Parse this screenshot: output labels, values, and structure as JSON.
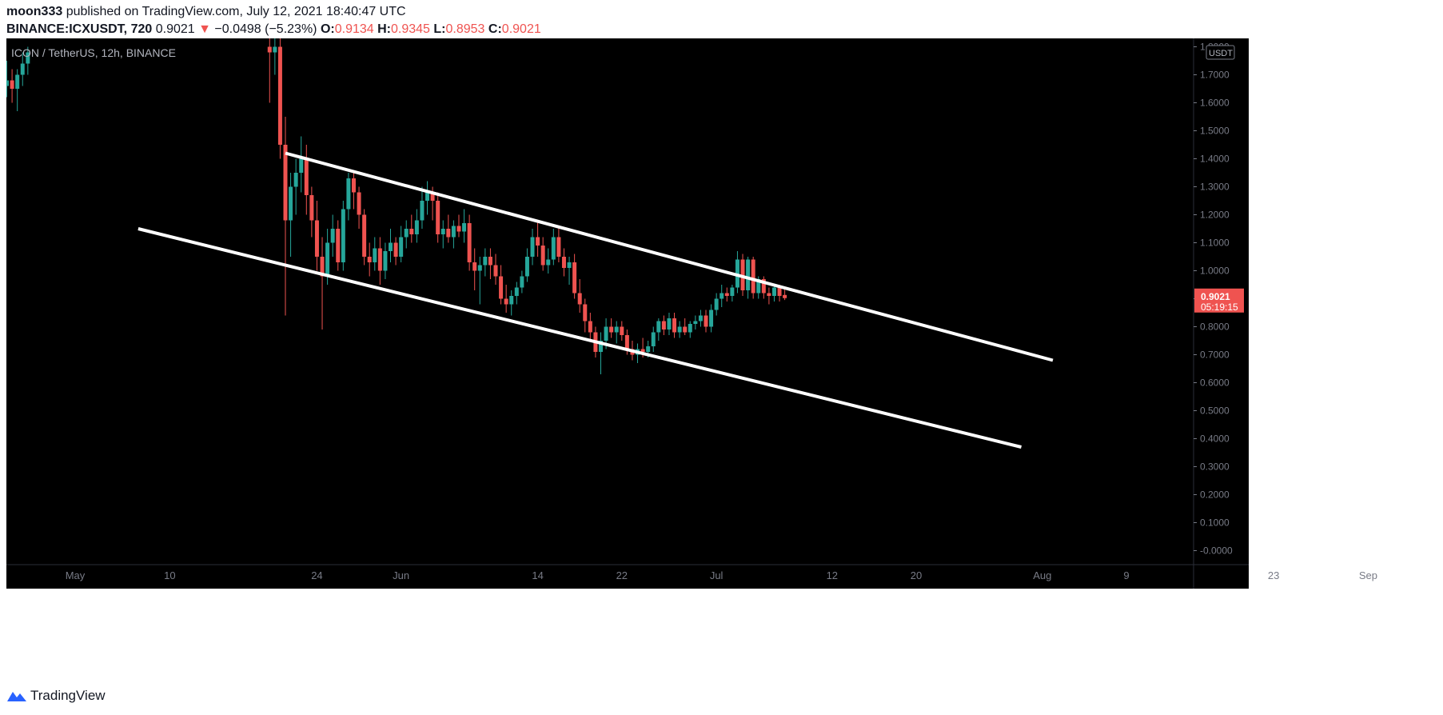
{
  "header": {
    "author": "moon333",
    "published_text": "published on TradingView.com, July 12, 2021 18:40:47 UTC",
    "symbol": "BINANCE:ICXUSDT, 720",
    "price": "0.9021",
    "change": "−0.0498 (−5.23%)",
    "open_label": "O:",
    "open": "0.9134",
    "high_label": "H:",
    "high": "0.9345",
    "low_label": "L:",
    "low": "0.8953",
    "close_label": "C:",
    "close": "0.9021"
  },
  "legend": "ICON / TetherUS, 12h, BINANCE",
  "currency_badge": "USDT",
  "last_price_badge": {
    "price": "0.9021",
    "countdown": "05:19:15"
  },
  "brand": "TradingView",
  "colors": {
    "up": "#26a69a",
    "down": "#ef5350",
    "background": "#000000",
    "axis_text": "#787b86",
    "trendline": "#ffffff"
  },
  "chart_data": {
    "type": "candlestick",
    "title": "ICON / TetherUS, 12h, BINANCE",
    "ylim": [
      -0.05,
      1.83
    ],
    "y_ticks": [
      "1.8000",
      "1.7000",
      "1.6000",
      "1.5000",
      "1.4000",
      "1.3000",
      "1.2000",
      "1.1000",
      "1.0000",
      "0.9000",
      "0.8000",
      "0.7000",
      "0.6000",
      "0.5000",
      "0.4000",
      "0.3000",
      "0.2000",
      "0.1000",
      "-0.0000"
    ],
    "x_ticks": [
      {
        "label": "May",
        "date": "2021-05-01"
      },
      {
        "label": "10",
        "date": "2021-05-10"
      },
      {
        "label": "24",
        "date": "2021-05-24"
      },
      {
        "label": "Jun",
        "date": "2021-06-01"
      },
      {
        "label": "14",
        "date": "2021-06-14"
      },
      {
        "label": "22",
        "date": "2021-06-22"
      },
      {
        "label": "Jul",
        "date": "2021-07-01"
      },
      {
        "label": "12",
        "date": "2021-07-12"
      },
      {
        "label": "20",
        "date": "2021-07-20"
      },
      {
        "label": "Aug",
        "date": "2021-08-01"
      },
      {
        "label": "9",
        "date": "2021-08-09"
      },
      {
        "label": "23",
        "date": "2021-08-23"
      },
      {
        "label": "Sep",
        "date": "2021-09-01"
      }
    ],
    "candles": [
      [
        "2021-04-24 00:00",
        1.7,
        1.74,
        1.5,
        1.66
      ],
      [
        "2021-04-24 12:00",
        1.66,
        1.75,
        1.62,
        1.68
      ],
      [
        "2021-04-25 00:00",
        1.68,
        1.72,
        1.6,
        1.65
      ],
      [
        "2021-04-25 12:00",
        1.65,
        1.72,
        1.57,
        1.7
      ],
      [
        "2021-04-26 00:00",
        1.7,
        1.78,
        1.66,
        1.74
      ],
      [
        "2021-04-26 12:00",
        1.74,
        1.8,
        1.7,
        1.78
      ],
      [
        "2021-05-19 12:00",
        1.8,
        1.83,
        1.6,
        1.78
      ],
      [
        "2021-05-20 00:00",
        1.78,
        1.83,
        1.7,
        1.8
      ],
      [
        "2021-05-20 12:00",
        1.8,
        1.83,
        1.4,
        1.45
      ],
      [
        "2021-05-21 00:00",
        1.45,
        1.55,
        0.84,
        1.18
      ],
      [
        "2021-05-21 12:00",
        1.18,
        1.35,
        1.05,
        1.3
      ],
      [
        "2021-05-22 00:00",
        1.3,
        1.4,
        1.2,
        1.35
      ],
      [
        "2021-05-22 12:00",
        1.35,
        1.48,
        1.28,
        1.4
      ],
      [
        "2021-05-23 00:00",
        1.4,
        1.45,
        1.2,
        1.27
      ],
      [
        "2021-05-23 12:00",
        1.27,
        1.3,
        1.12,
        1.18
      ],
      [
        "2021-05-24 00:00",
        1.18,
        1.25,
        1.0,
        1.05
      ],
      [
        "2021-05-24 12:00",
        1.05,
        1.12,
        0.79,
        0.98
      ],
      [
        "2021-05-25 00:00",
        0.98,
        1.15,
        0.95,
        1.1
      ],
      [
        "2021-05-25 12:00",
        1.1,
        1.2,
        1.05,
        1.15
      ],
      [
        "2021-05-26 00:00",
        1.15,
        1.18,
        1.0,
        1.03
      ],
      [
        "2021-05-26 12:00",
        1.03,
        1.25,
        1.0,
        1.22
      ],
      [
        "2021-05-27 00:00",
        1.22,
        1.35,
        1.18,
        1.33
      ],
      [
        "2021-05-27 12:00",
        1.33,
        1.35,
        1.22,
        1.28
      ],
      [
        "2021-05-28 00:00",
        1.28,
        1.3,
        1.15,
        1.2
      ],
      [
        "2021-05-28 12:00",
        1.2,
        1.22,
        1.02,
        1.05
      ],
      [
        "2021-05-29 00:00",
        1.05,
        1.1,
        0.98,
        1.03
      ],
      [
        "2021-05-29 12:00",
        1.03,
        1.12,
        1.0,
        1.08
      ],
      [
        "2021-05-30 00:00",
        1.08,
        1.12,
        0.95,
        1.0
      ],
      [
        "2021-05-30 12:00",
        1.0,
        1.1,
        0.97,
        1.07
      ],
      [
        "2021-05-31 00:00",
        1.07,
        1.15,
        1.03,
        1.1
      ],
      [
        "2021-05-31 12:00",
        1.1,
        1.12,
        1.02,
        1.05
      ],
      [
        "2021-06-01 00:00",
        1.05,
        1.16,
        1.03,
        1.12
      ],
      [
        "2021-06-01 12:00",
        1.12,
        1.18,
        1.08,
        1.15
      ],
      [
        "2021-06-02 00:00",
        1.15,
        1.2,
        1.1,
        1.13
      ],
      [
        "2021-06-02 12:00",
        1.13,
        1.22,
        1.1,
        1.18
      ],
      [
        "2021-06-03 00:00",
        1.18,
        1.3,
        1.15,
        1.25
      ],
      [
        "2021-06-03 12:00",
        1.25,
        1.32,
        1.2,
        1.28
      ],
      [
        "2021-06-04 00:00",
        1.28,
        1.3,
        1.18,
        1.25
      ],
      [
        "2021-06-04 12:00",
        1.25,
        1.28,
        1.1,
        1.13
      ],
      [
        "2021-06-05 00:00",
        1.13,
        1.18,
        1.08,
        1.15
      ],
      [
        "2021-06-05 12:00",
        1.15,
        1.2,
        1.1,
        1.12
      ],
      [
        "2021-06-06 00:00",
        1.12,
        1.18,
        1.08,
        1.16
      ],
      [
        "2021-06-06 12:00",
        1.16,
        1.2,
        1.12,
        1.14
      ],
      [
        "2021-06-07 00:00",
        1.14,
        1.22,
        1.1,
        1.17
      ],
      [
        "2021-06-07 12:00",
        1.17,
        1.2,
        1.0,
        1.03
      ],
      [
        "2021-06-08 00:00",
        1.03,
        1.08,
        0.93,
        1.0
      ],
      [
        "2021-06-08 12:00",
        1.0,
        1.05,
        0.88,
        1.02
      ],
      [
        "2021-06-09 00:00",
        1.02,
        1.08,
        0.98,
        1.05
      ],
      [
        "2021-06-09 12:00",
        1.05,
        1.08,
        0.97,
        1.02
      ],
      [
        "2021-06-10 00:00",
        1.02,
        1.06,
        0.95,
        0.98
      ],
      [
        "2021-06-10 12:00",
        0.98,
        1.02,
        0.88,
        0.9
      ],
      [
        "2021-06-11 00:00",
        0.9,
        0.95,
        0.85,
        0.88
      ],
      [
        "2021-06-11 12:00",
        0.88,
        0.93,
        0.84,
        0.91
      ],
      [
        "2021-06-12 00:00",
        0.91,
        0.96,
        0.88,
        0.94
      ],
      [
        "2021-06-12 12:00",
        0.94,
        1.0,
        0.92,
        0.98
      ],
      [
        "2021-06-13 00:00",
        0.98,
        1.08,
        0.96,
        1.05
      ],
      [
        "2021-06-13 12:00",
        1.05,
        1.15,
        1.02,
        1.12
      ],
      [
        "2021-06-14 00:00",
        1.12,
        1.18,
        1.05,
        1.09
      ],
      [
        "2021-06-14 12:00",
        1.09,
        1.12,
        1.0,
        1.02
      ],
      [
        "2021-06-15 00:00",
        1.02,
        1.08,
        0.99,
        1.04
      ],
      [
        "2021-06-15 12:00",
        1.04,
        1.15,
        1.02,
        1.12
      ],
      [
        "2021-06-16 00:00",
        1.12,
        1.16,
        1.03,
        1.05
      ],
      [
        "2021-06-16 12:00",
        1.05,
        1.08,
        0.98,
        1.01
      ],
      [
        "2021-06-17 00:00",
        1.01,
        1.05,
        0.95,
        1.03
      ],
      [
        "2021-06-17 12:00",
        1.03,
        1.06,
        0.9,
        0.92
      ],
      [
        "2021-06-18 00:00",
        0.92,
        0.97,
        0.85,
        0.88
      ],
      [
        "2021-06-18 12:00",
        0.88,
        0.9,
        0.78,
        0.82
      ],
      [
        "2021-06-19 00:00",
        0.82,
        0.85,
        0.75,
        0.78
      ],
      [
        "2021-06-19 12:00",
        0.78,
        0.8,
        0.69,
        0.71
      ],
      [
        "2021-06-20 00:00",
        0.71,
        0.78,
        0.63,
        0.75
      ],
      [
        "2021-06-20 12:00",
        0.75,
        0.83,
        0.72,
        0.8
      ],
      [
        "2021-06-21 00:00",
        0.8,
        0.83,
        0.76,
        0.78
      ],
      [
        "2021-06-21 12:00",
        0.78,
        0.82,
        0.74,
        0.8
      ],
      [
        "2021-06-22 00:00",
        0.8,
        0.82,
        0.75,
        0.77
      ],
      [
        "2021-06-22 12:00",
        0.77,
        0.79,
        0.7,
        0.72
      ],
      [
        "2021-06-23 00:00",
        0.72,
        0.75,
        0.68,
        0.7
      ],
      [
        "2021-06-23 12:00",
        0.7,
        0.74,
        0.67,
        0.72
      ],
      [
        "2021-06-24 00:00",
        0.72,
        0.76,
        0.69,
        0.71
      ],
      [
        "2021-06-24 12:00",
        0.71,
        0.75,
        0.69,
        0.73
      ],
      [
        "2021-06-25 00:00",
        0.73,
        0.8,
        0.71,
        0.78
      ],
      [
        "2021-06-25 12:00",
        0.78,
        0.83,
        0.75,
        0.82
      ],
      [
        "2021-06-26 00:00",
        0.82,
        0.84,
        0.77,
        0.79
      ],
      [
        "2021-06-26 12:00",
        0.79,
        0.85,
        0.77,
        0.83
      ],
      [
        "2021-06-27 00:00",
        0.83,
        0.85,
        0.76,
        0.78
      ],
      [
        "2021-06-27 12:00",
        0.78,
        0.82,
        0.76,
        0.8
      ],
      [
        "2021-06-28 00:00",
        0.8,
        0.83,
        0.77,
        0.78
      ],
      [
        "2021-06-28 12:00",
        0.78,
        0.82,
        0.76,
        0.81
      ],
      [
        "2021-06-29 00:00",
        0.81,
        0.84,
        0.79,
        0.82
      ],
      [
        "2021-06-29 12:00",
        0.82,
        0.86,
        0.8,
        0.84
      ],
      [
        "2021-06-30 00:00",
        0.84,
        0.86,
        0.78,
        0.8
      ],
      [
        "2021-06-30 12:00",
        0.8,
        0.88,
        0.78,
        0.86
      ],
      [
        "2021-07-01 00:00",
        0.86,
        0.92,
        0.84,
        0.9
      ],
      [
        "2021-07-01 12:00",
        0.9,
        0.95,
        0.87,
        0.92
      ],
      [
        "2021-07-02 00:00",
        0.92,
        0.94,
        0.89,
        0.91
      ],
      [
        "2021-07-02 12:00",
        0.91,
        0.95,
        0.89,
        0.94
      ],
      [
        "2021-07-03 00:00",
        0.94,
        1.07,
        0.92,
        1.04
      ],
      [
        "2021-07-03 12:00",
        1.04,
        1.06,
        0.91,
        0.93
      ],
      [
        "2021-07-04 00:00",
        0.93,
        1.05,
        0.9,
        1.04
      ],
      [
        "2021-07-04 12:00",
        1.04,
        1.05,
        0.9,
        0.92
      ],
      [
        "2021-07-05 00:00",
        0.92,
        0.98,
        0.9,
        0.97
      ],
      [
        "2021-07-05 12:00",
        0.97,
        0.98,
        0.9,
        0.92
      ],
      [
        "2021-07-06 00:00",
        0.92,
        0.94,
        0.88,
        0.91
      ],
      [
        "2021-07-06 12:00",
        0.91,
        0.95,
        0.89,
        0.94
      ],
      [
        "2021-07-07 00:00",
        0.94,
        0.95,
        0.89,
        0.91
      ],
      [
        "2021-07-07 12:00",
        0.9134,
        0.9345,
        0.8953,
        0.9021
      ]
    ],
    "trendlines": [
      {
        "name": "upper-channel",
        "from": [
          "2021-05-21 00:00",
          1.42
        ],
        "to": [
          "2021-08-02 00:00",
          0.68
        ]
      },
      {
        "name": "lower-channel",
        "from": [
          "2021-05-07 00:00",
          1.15
        ],
        "to": [
          "2021-07-30 00:00",
          0.37
        ]
      }
    ],
    "last_price": 0.9021,
    "grid": false
  }
}
